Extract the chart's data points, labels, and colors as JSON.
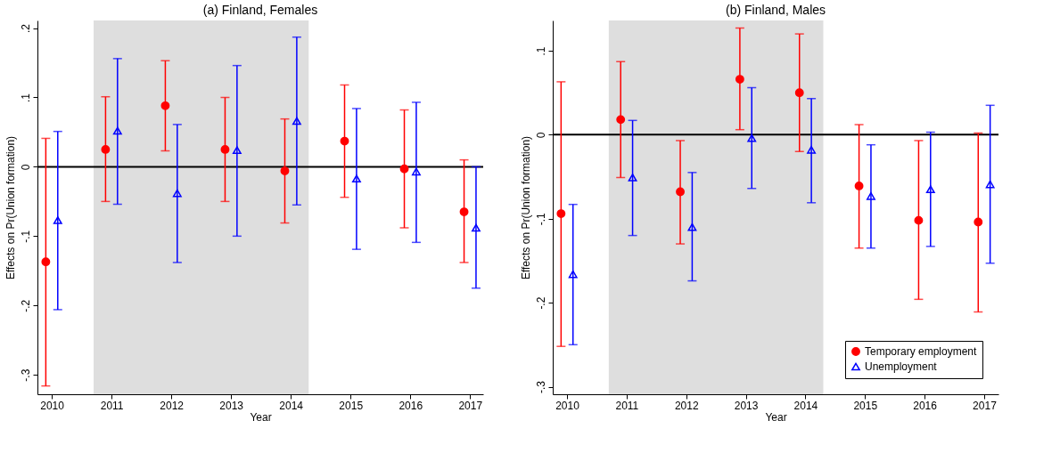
{
  "chart_data": [
    {
      "type": "scatter",
      "title": "(a) Finland, Females",
      "xlabel": "Year",
      "ylabel": "Effects on Pr(Union formation)",
      "xlim": [
        2009.76,
        2017.22
      ],
      "xticks": [
        2010,
        2011,
        2012,
        2013,
        2014,
        2015,
        2016,
        2017
      ],
      "ylim": [
        -0.328,
        0.211
      ],
      "yticks": [
        {
          "value": -0.3,
          "label": "-.3"
        },
        {
          "value": -0.2,
          "label": "-.2"
        },
        {
          "value": -0.1,
          "label": "-.1"
        },
        0,
        {
          "value": 0.1,
          "label": ".1"
        },
        {
          "value": 0.2,
          "label": ".2"
        }
      ],
      "grid": false,
      "legend": false,
      "bands": [
        {
          "axis": "x",
          "from": 2010.7,
          "to": 2014.3,
          "color": "#dedede"
        }
      ],
      "ref_lines": [
        {
          "axis": "y",
          "value": 0,
          "color": "#000000"
        }
      ],
      "series": [
        {
          "color": "#ff0000",
          "marker": "circle",
          "x": [
            2009.9,
            2010.9,
            2011.9,
            2012.9,
            2013.9,
            2014.9,
            2015.9,
            2016.9
          ],
          "values": [
            -0.137,
            0.025,
            0.088,
            0.025,
            -0.006,
            0.037,
            -0.003,
            -0.065
          ],
          "errors": [
            [
              -0.316,
              0.041
            ],
            [
              -0.05,
              0.101
            ],
            [
              0.023,
              0.153
            ],
            [
              -0.05,
              0.1
            ],
            [
              -0.081,
              0.069
            ],
            [
              -0.044,
              0.118
            ],
            [
              -0.088,
              0.082
            ],
            [
              -0.138,
              0.01
            ]
          ]
        },
        {
          "color": "#0000ff",
          "marker": "triangle",
          "x": [
            2010.1,
            2011.1,
            2012.1,
            2013.1,
            2014.1,
            2015.1,
            2016.1,
            2017.1
          ],
          "values": [
            -0.077,
            0.052,
            -0.038,
            0.024,
            0.066,
            -0.017,
            -0.007,
            -0.088
          ],
          "errors": [
            [
              -0.206,
              0.051
            ],
            [
              -0.054,
              0.156
            ],
            [
              -0.138,
              0.061
            ],
            [
              -0.1,
              0.146
            ],
            [
              -0.055,
              0.187
            ],
            [
              -0.119,
              0.084
            ],
            [
              -0.109,
              0.093
            ],
            [
              -0.175,
              0.0
            ]
          ]
        }
      ]
    },
    {
      "type": "scatter",
      "title": "(b) Finland, Males",
      "xlabel": "Year",
      "ylabel": "Effects on Pr(Union formation)",
      "xlim": [
        2009.76,
        2017.24
      ],
      "xticks": [
        2010,
        2011,
        2012,
        2013,
        2014,
        2015,
        2016,
        2017
      ],
      "ylim": [
        -0.309,
        0.136
      ],
      "yticks": [
        {
          "value": -0.3,
          "label": "-.3"
        },
        {
          "value": -0.2,
          "label": "-.2"
        },
        {
          "value": -0.1,
          "label": "-.1"
        },
        0,
        {
          "value": 0.1,
          "label": ".1"
        }
      ],
      "grid": false,
      "legend": "bottom right",
      "bands": [
        {
          "axis": "x",
          "from": 2010.7,
          "to": 2014.3,
          "color": "#dedede"
        }
      ],
      "ref_lines": [
        {
          "axis": "y",
          "value": 0,
          "color": "#000000"
        }
      ],
      "series": [
        {
          "name": "Temporary employment",
          "color": "#ff0000",
          "marker": "circle",
          "x": [
            2009.9,
            2010.9,
            2011.9,
            2012.9,
            2013.9,
            2014.9,
            2015.9,
            2016.9
          ],
          "values": [
            -0.094,
            0.018,
            -0.068,
            0.066,
            0.05,
            -0.061,
            -0.102,
            -0.104
          ],
          "errors": [
            [
              -0.252,
              0.063
            ],
            [
              -0.051,
              0.087
            ],
            [
              -0.13,
              -0.007
            ],
            [
              0.006,
              0.127
            ],
            [
              -0.02,
              0.12
            ],
            [
              -0.135,
              0.012
            ],
            [
              -0.196,
              -0.007
            ],
            [
              -0.211,
              0.002
            ]
          ]
        },
        {
          "name": "Unemployment",
          "color": "#0000ff",
          "marker": "triangle",
          "x": [
            2010.1,
            2011.1,
            2012.1,
            2013.1,
            2014.1,
            2015.1,
            2016.1,
            2017.1
          ],
          "values": [
            -0.166,
            -0.051,
            -0.11,
            -0.004,
            -0.018,
            -0.073,
            -0.065,
            -0.059
          ],
          "errors": [
            [
              -0.25,
              -0.083
            ],
            [
              -0.12,
              0.017
            ],
            [
              -0.174,
              -0.045
            ],
            [
              -0.064,
              0.056
            ],
            [
              -0.081,
              0.043
            ],
            [
              -0.135,
              -0.012
            ],
            [
              -0.133,
              0.003
            ],
            [
              -0.153,
              0.035
            ]
          ]
        }
      ]
    }
  ]
}
